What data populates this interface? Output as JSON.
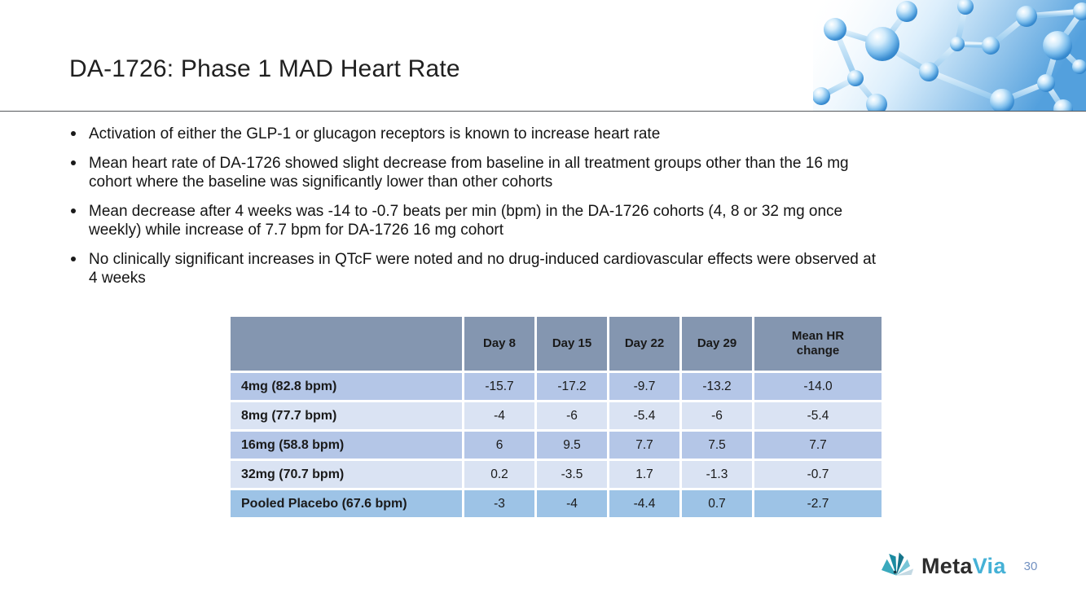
{
  "title": "DA-1726: Phase 1 MAD Heart Rate",
  "bullets": [
    {
      "lines": [
        "Activation of either the GLP-1 or glucagon receptors is known to increase heart rate"
      ]
    },
    {
      "lines": [
        "Mean heart rate of DA-1726 showed slight decrease from baseline in all treatment groups other than the 16 mg",
        "cohort where the baseline was significantly lower than other cohorts"
      ]
    },
    {
      "lines": [
        "Mean decrease after 4 weeks was -14 to -0.7 beats per min (bpm) in the DA-1726 cohorts (4, 8 or 32 mg once",
        "weekly) while increase of 7.7 bpm for DA-1726 16 mg cohort"
      ]
    },
    {
      "lines": [
        "No clinically significant increases in QTcF were noted and no drug-induced cardiovascular effects were observed at",
        "4 weeks"
      ]
    }
  ],
  "table": {
    "columns": [
      "",
      "Day 8",
      "Day 15",
      "Day 22",
      "Day 29",
      "Mean HR change"
    ],
    "rows": [
      {
        "label": "4mg (82.8 bpm)",
        "values": [
          "-15.7",
          "-17.2",
          "-9.7",
          "-13.2",
          "-14.0"
        ],
        "style": "medium"
      },
      {
        "label": "8mg (77.7 bpm)",
        "values": [
          "-4",
          "-6",
          "-5.4",
          "-6",
          "-5.4"
        ],
        "style": "light"
      },
      {
        "label": "16mg (58.8 bpm)",
        "values": [
          "6",
          "9.5",
          "7.7",
          "7.5",
          "7.7"
        ],
        "style": "medium"
      },
      {
        "label": "32mg (70.7 bpm)",
        "values": [
          "0.2",
          "-3.5",
          "1.7",
          "-1.3",
          "-0.7"
        ],
        "style": "light"
      },
      {
        "label": "Pooled Placebo (67.6 bpm)",
        "values": [
          "-3",
          "-4",
          "-4.4",
          "0.7",
          "-2.7"
        ],
        "style": "placebo"
      }
    ]
  },
  "logo": {
    "meta": "Meta",
    "via": "Via",
    "icon": "metavia-splash-icon"
  },
  "page_number": "30",
  "decor": {
    "top_right_image": "blue-3d-molecule-render"
  },
  "colors": {
    "table_header_bg": "#8496B0",
    "row_medium_bg": "#B4C6E7",
    "row_light_bg": "#DAE3F3",
    "row_placebo_bg": "#9DC3E6",
    "text": "#1A1A1A",
    "rule": "#55585C",
    "via_accent": "#45B1D6",
    "page_number": "#7291C1",
    "molecule_blue": "#4E9EDD"
  }
}
